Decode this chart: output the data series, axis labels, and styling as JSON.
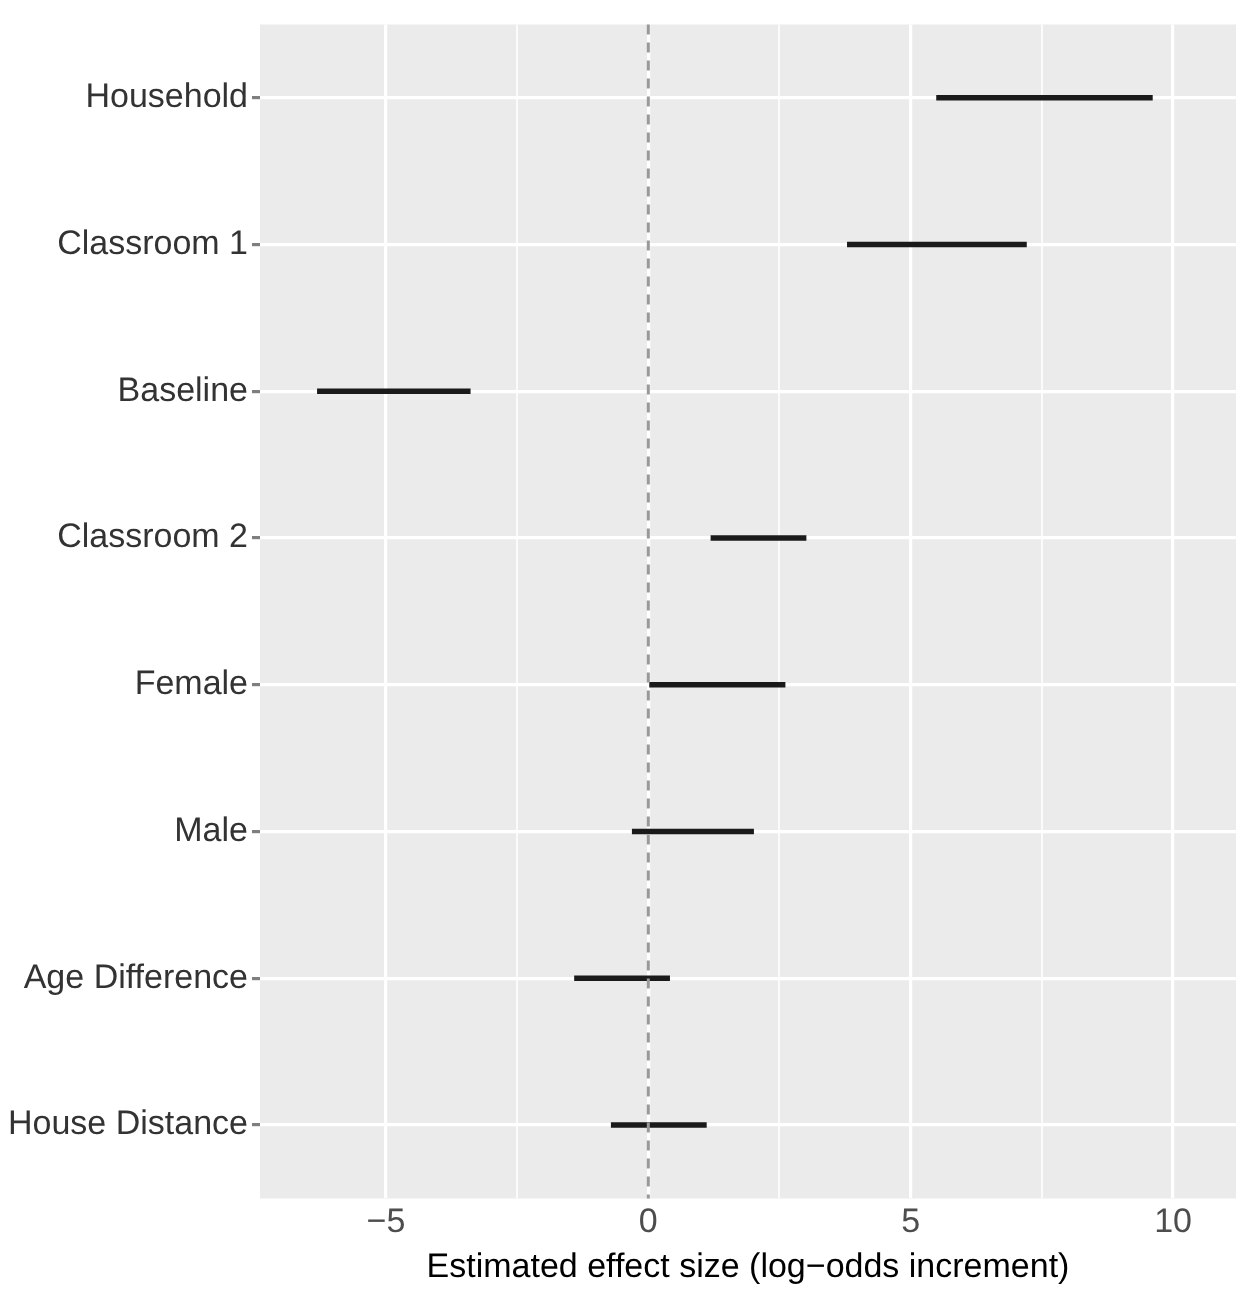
{
  "chart_data": {
    "type": "bar",
    "orientation": "horizontal",
    "xlabel": "Estimated effect size (log−odds increment)",
    "categories": [
      "Household",
      "Classroom 1",
      "Baseline",
      "Classroom 2",
      "Female",
      "Male",
      "Age Difference",
      "House Distance"
    ],
    "base": [
      5.5,
      3.8,
      -6.3,
      1.2,
      0.0,
      -0.3,
      -1.4,
      -0.7
    ],
    "values": [
      4.1,
      3.4,
      2.9,
      1.8,
      2.6,
      2.3,
      1.8,
      1.8
    ],
    "color": "#1a1a1a",
    "xlim": [
      -7.4,
      11.2
    ],
    "xticks": [
      {
        "value": -5,
        "label": "−5"
      },
      {
        "value": -2.5,
        "label": null
      },
      0,
      {
        "value": 2.5,
        "label": null
      },
      5,
      {
        "value": 7.5,
        "label": null
      },
      10
    ],
    "ref_lines": [
      {
        "axis": "x",
        "value": 0,
        "color": "#999999",
        "line_style": "dashed"
      }
    ],
    "grid": true,
    "legend": false
  }
}
